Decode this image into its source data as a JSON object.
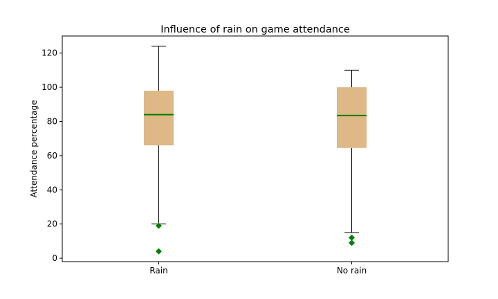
{
  "chart_data": {
    "type": "box",
    "title": "Influence of rain on game attendance",
    "xlabel": "",
    "ylabel": "Attendance percentage",
    "ylim": [
      -2,
      130
    ],
    "yticks": [
      0,
      20,
      40,
      60,
      80,
      100,
      120
    ],
    "grid": false,
    "categories": [
      "Rain",
      "No rain"
    ],
    "boxes": [
      {
        "category": "Rain",
        "whisker_low": 20,
        "q1": 66,
        "median": 84,
        "q3": 98,
        "whisker_high": 124,
        "outliers": [
          19,
          4
        ]
      },
      {
        "category": "No rain",
        "whisker_low": 15,
        "q1": 64.5,
        "median": 83.5,
        "q3": 100,
        "whisker_high": 110,
        "outliers": [
          12,
          9
        ]
      }
    ],
    "colors": {
      "box_fill": "#deb887",
      "median": "#008000",
      "outlier": "#008000",
      "whisker": "#000000"
    }
  }
}
